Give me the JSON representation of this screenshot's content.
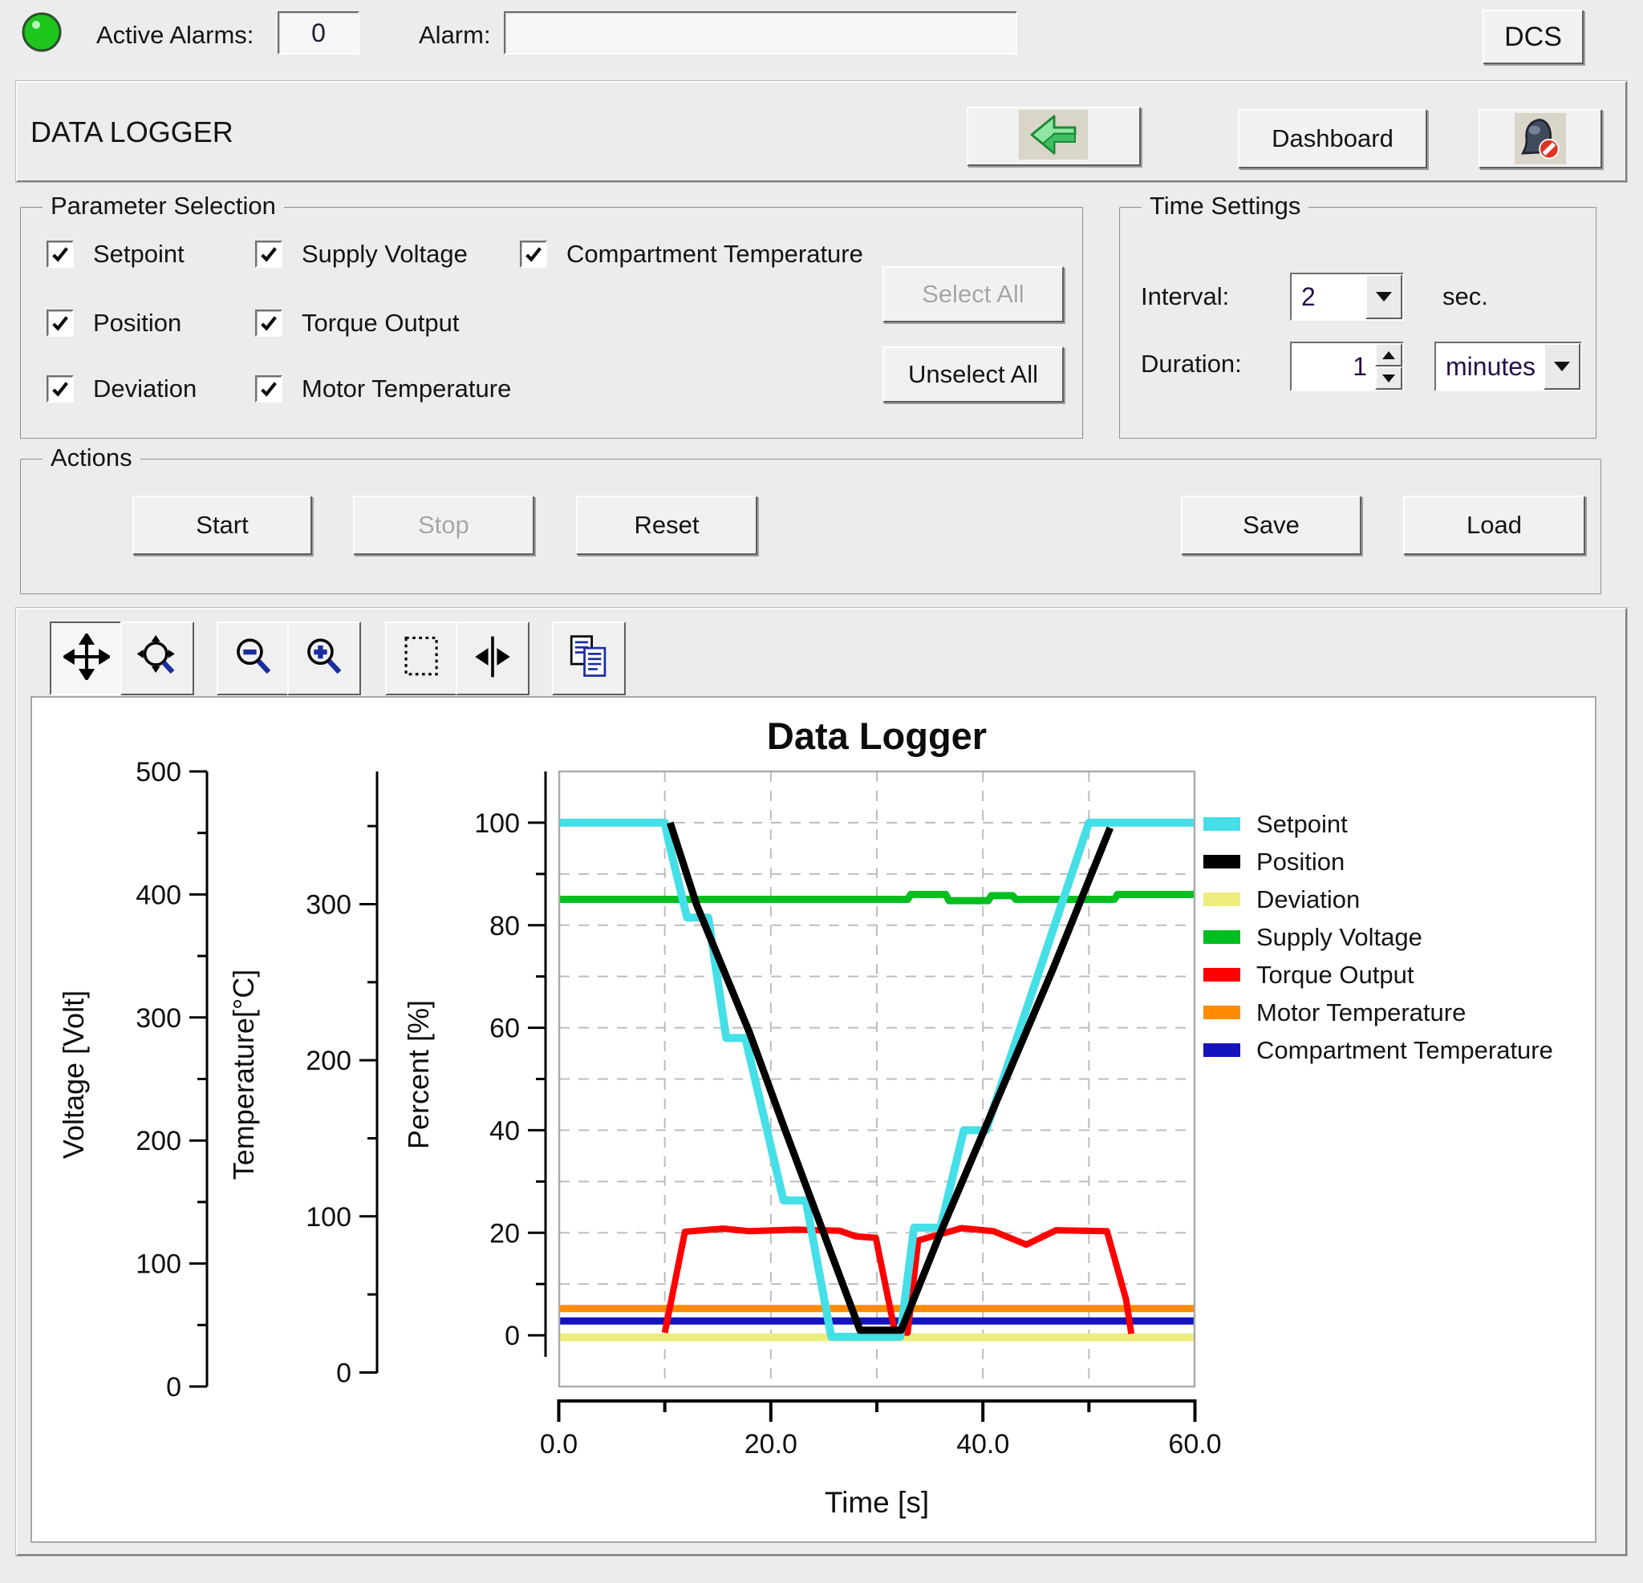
{
  "top_bar": {
    "led_color": "#1dc51d",
    "active_alarms_label": "Active Alarms:",
    "active_alarms_value": "0",
    "alarm_label": "Alarm:",
    "alarm_value": "",
    "dcs_button": "DCS"
  },
  "header": {
    "title": "DATA LOGGER",
    "dashboard_button": "Dashboard",
    "back_icon": "back-arrow-icon",
    "alarm_mute_icon": "alarm-mute-icon"
  },
  "parameter_selection": {
    "title": "Parameter Selection",
    "items": [
      {
        "label": "Setpoint",
        "checked": true,
        "col": 0,
        "row": 0
      },
      {
        "label": "Position",
        "checked": true,
        "col": 0,
        "row": 1
      },
      {
        "label": "Deviation",
        "checked": true,
        "col": 0,
        "row": 2
      },
      {
        "label": "Supply Voltage",
        "checked": true,
        "col": 1,
        "row": 0
      },
      {
        "label": "Torque Output",
        "checked": true,
        "col": 1,
        "row": 1
      },
      {
        "label": "Motor Temperature",
        "checked": true,
        "col": 1,
        "row": 2
      },
      {
        "label": "Compartment Temperature",
        "checked": true,
        "col": 2,
        "row": 0
      }
    ],
    "select_all_label": "Select All",
    "select_all_enabled": false,
    "unselect_all_label": "Unselect All",
    "unselect_all_enabled": true
  },
  "time_settings": {
    "title": "Time Settings",
    "interval_label": "Interval:",
    "interval_value": "2",
    "interval_unit": "sec.",
    "duration_label": "Duration:",
    "duration_value": "1",
    "duration_unit": "minutes"
  },
  "actions": {
    "title": "Actions",
    "buttons": [
      {
        "label": "Start",
        "enabled": true
      },
      {
        "label": "Stop",
        "enabled": false
      },
      {
        "label": "Reset",
        "enabled": true
      },
      {
        "label": "Save",
        "enabled": true
      },
      {
        "label": "Load",
        "enabled": true
      }
    ]
  },
  "chart_toolbar": {
    "buttons": [
      {
        "name": "pan-icon",
        "pressed": true
      },
      {
        "name": "zoom-dynamic-icon",
        "pressed": false
      },
      {
        "name": "zoom-out-icon",
        "pressed": false
      },
      {
        "name": "zoom-in-icon",
        "pressed": false
      },
      {
        "name": "zoom-box-icon",
        "pressed": false
      },
      {
        "name": "zoom-horizontal-fit-icon",
        "pressed": false
      },
      {
        "name": "copy-icon",
        "pressed": false
      }
    ]
  },
  "chart_data": {
    "type": "line",
    "title": "Data Logger",
    "x_axis": {
      "label": "Time [s]",
      "range": [
        0,
        60
      ],
      "tick_values": [
        0,
        20,
        40,
        60
      ],
      "tick_labels": [
        "0.0",
        "20.0",
        "40.0",
        "60.0"
      ],
      "minor_tick_step": 10
    },
    "y_axes": [
      {
        "id": "voltage",
        "title": "Voltage [Volt]",
        "bottom": 0,
        "top": 500,
        "major_ticks": [
          0,
          100,
          200,
          300,
          400,
          500
        ],
        "minor_ticks": [
          50,
          150,
          250,
          350,
          450
        ]
      },
      {
        "id": "temperature",
        "title": "Temperature[°C]",
        "bottom": -9,
        "top": 385,
        "major_ticks": [
          0,
          100,
          200,
          300
        ],
        "minor_ticks": [
          50,
          150,
          250,
          350
        ]
      },
      {
        "id": "percent",
        "title": "Percent [%]",
        "bottom": -10,
        "top": 110,
        "major_ticks": [
          0,
          20,
          40,
          60,
          80,
          100
        ],
        "minor_ticks": [
          10,
          30,
          50,
          70,
          90
        ]
      }
    ],
    "grid": {
      "style": "dashed",
      "x_step": 10,
      "percent_step": 10,
      "color": "#bdbdbd"
    },
    "legend_position": "right",
    "series": [
      {
        "name": "Setpoint",
        "color": "#45dfe8",
        "axis": "percent",
        "unit": "%",
        "points": [
          [
            0,
            100
          ],
          [
            10,
            100
          ],
          [
            10.4,
            96
          ],
          [
            12.1,
            81.5
          ],
          [
            14.1,
            81.5
          ],
          [
            15.8,
            58
          ],
          [
            17.6,
            58
          ],
          [
            21.2,
            26.3
          ],
          [
            23.3,
            26.3
          ],
          [
            25.7,
            -0.3
          ],
          [
            32.2,
            -0.3
          ],
          [
            33.5,
            21
          ],
          [
            36,
            21
          ],
          [
            38.2,
            40
          ],
          [
            40.3,
            40
          ],
          [
            50,
            100
          ],
          [
            60,
            100
          ]
        ]
      },
      {
        "name": "Position",
        "color": "#000000",
        "axis": "percent",
        "unit": "%",
        "points": [
          [
            10.5,
            100
          ],
          [
            13,
            84
          ],
          [
            18,
            59
          ],
          [
            21,
            42
          ],
          [
            28.4,
            1
          ],
          [
            32.3,
            1
          ],
          [
            36.1,
            20.5
          ],
          [
            46.6,
            71.4
          ],
          [
            52,
            99
          ]
        ]
      },
      {
        "name": "Deviation",
        "color": "#edee7e",
        "axis": "percent",
        "unit": "%",
        "points": [
          [
            0,
            -0.4
          ],
          [
            60,
            -0.4
          ]
        ]
      },
      {
        "name": "Supply Voltage",
        "color": "#00be1e",
        "axis": "voltage",
        "unit": "V",
        "points": [
          [
            0,
            396
          ],
          [
            32.9,
            396
          ],
          [
            33.2,
            400
          ],
          [
            36.5,
            400
          ],
          [
            36.8,
            395
          ],
          [
            40.5,
            395
          ],
          [
            40.8,
            399
          ],
          [
            42.8,
            399
          ],
          [
            43.1,
            396
          ],
          [
            52.4,
            396
          ],
          [
            52.7,
            400
          ],
          [
            60,
            400
          ]
        ]
      },
      {
        "name": "Torque Output",
        "color": "#ff0000",
        "axis": "percent",
        "unit": "%",
        "points": [
          [
            10,
            0.5
          ],
          [
            11.9,
            20.2
          ],
          [
            15.5,
            20.8
          ],
          [
            18,
            20.3
          ],
          [
            22.3,
            20.6
          ],
          [
            26.5,
            20.4
          ],
          [
            28,
            19.3
          ],
          [
            29.9,
            19
          ],
          [
            31.7,
            0.7
          ],
          [
            32.9,
            0.5
          ],
          [
            33.9,
            18.5
          ],
          [
            38,
            20.9
          ],
          [
            41,
            20.3
          ],
          [
            44.1,
            17.7
          ],
          [
            46.9,
            20.5
          ],
          [
            51.7,
            20.3
          ],
          [
            53.5,
            7
          ],
          [
            54,
            0.3
          ]
        ]
      },
      {
        "name": "Motor Temperature",
        "color": "#ff8c00",
        "axis": "temperature",
        "unit": "°C",
        "points": [
          [
            0,
            41
          ],
          [
            60,
            41
          ]
        ]
      },
      {
        "name": "Compartment Temperature",
        "color": "#1414be",
        "axis": "temperature",
        "unit": "°C",
        "points": [
          [
            0,
            33
          ],
          [
            60,
            33
          ]
        ]
      }
    ]
  }
}
